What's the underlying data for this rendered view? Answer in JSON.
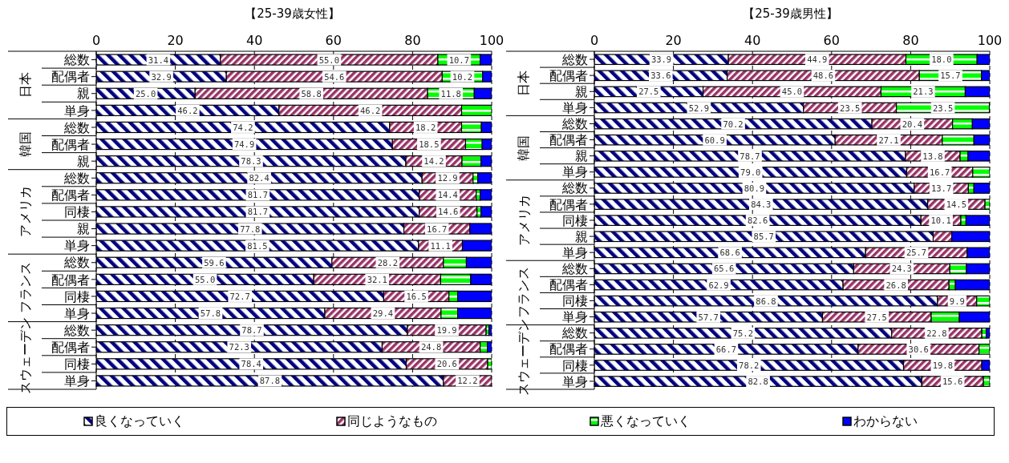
{
  "chart_data": [
    {
      "type": "bar",
      "orientation": "horizontal",
      "stacked": true,
      "title": "【25-39歳女性】",
      "categories": [
        "総数",
        "配偶者",
        "親",
        "単身",
        "総数",
        "配偶者",
        "親",
        "総数",
        "配偶者",
        "同棲",
        "親",
        "単身",
        "総数",
        "配偶者",
        "同棲",
        "単身",
        "総数",
        "配偶者",
        "同棲",
        "単身"
      ],
      "annotations": [
        "日本",
        "韓国",
        "アメリカ",
        "フランス",
        "スウェーデン"
      ],
      "xlim": [
        0,
        100
      ],
      "xticks": [
        0,
        20,
        40,
        60,
        80,
        100
      ],
      "grid": "x",
      "legend": "bottom",
      "series": [
        {
          "name": "良くなっていく",
          "color": "#000080",
          "values": [
            31.4,
            32.9,
            25.0,
            46.2,
            74.2,
            74.9,
            78.3,
            82.4,
            81.7,
            81.7,
            77.8,
            81.5,
            59.6,
            55.0,
            72.7,
            57.8,
            78.7,
            72.3,
            78.4,
            87.8
          ],
          "value_labels": [
            "31.4",
            "32.9",
            "25.0",
            "46.2",
            "74.2",
            "74.9",
            "78.3",
            "82.4",
            "81.7",
            "81.7",
            "77.8",
            "81.5",
            "59.6",
            "55.0",
            "72.7",
            "57.8",
            "78.7",
            "72.3",
            "78.4",
            "87.8"
          ]
        },
        {
          "name": "同じようなもの",
          "color": "#993366",
          "values": [
            55.0,
            54.6,
            58.8,
            46.2,
            18.2,
            18.5,
            14.2,
            12.9,
            14.4,
            14.6,
            16.7,
            11.1,
            28.2,
            32.1,
            16.5,
            29.4,
            19.9,
            24.8,
            20.6,
            12.2
          ],
          "value_labels": [
            "55.0",
            "54.6",
            "58.8",
            "46.2",
            "18.2",
            "18.5",
            "14.2",
            "12.9",
            "14.4",
            "14.6",
            "16.7",
            "11.1",
            "28.2",
            "32.1",
            "16.5",
            "29.4",
            "19.9",
            "24.8",
            "20.6",
            "12.2"
          ]
        },
        {
          "name": "悪くなっていく",
          "color": "#00ff00",
          "values": [
            10.7,
            10.2,
            11.8,
            7.6,
            5.0,
            4.2,
            4.8,
            1.2,
            1.0,
            1.0,
            null,
            null,
            5.8,
            7.6,
            2.2,
            4.2,
            0.7,
            1.8,
            1.0,
            null
          ],
          "value_labels": [
            "10.7",
            "10.2",
            "11.8",
            null,
            null,
            null,
            null,
            null,
            null,
            null,
            null,
            null,
            null,
            null,
            null,
            null,
            null,
            null,
            null,
            null
          ]
        },
        {
          "name": "わからない",
          "color": "#0000ff",
          "values": [
            2.9,
            2.3,
            4.4,
            null,
            2.6,
            2.4,
            2.7,
            3.5,
            2.9,
            2.7,
            5.5,
            7.4,
            6.4,
            5.3,
            8.6,
            8.6,
            0.7,
            1.1,
            null,
            null
          ]
        }
      ]
    },
    {
      "type": "bar",
      "orientation": "horizontal",
      "stacked": true,
      "title": "【25-39歳男性】",
      "categories": [
        "総数",
        "配偶者",
        "親",
        "単身",
        "総数",
        "配偶者",
        "親",
        "単身",
        "総数",
        "配偶者",
        "同棲",
        "親",
        "単身",
        "総数",
        "配偶者",
        "同棲",
        "単身",
        "総数",
        "配偶者",
        "同棲",
        "単身"
      ],
      "annotations": [
        "日本",
        "韓国",
        "アメリカ",
        "フランス",
        "スウェーデン"
      ],
      "xlim": [
        0,
        100
      ],
      "xticks": [
        0,
        20,
        40,
        60,
        80,
        100
      ],
      "grid": "x",
      "legend": "bottom",
      "series": [
        {
          "name": "良くなっていく",
          "color": "#000080",
          "values": [
            33.9,
            33.6,
            27.5,
            52.9,
            70.2,
            60.9,
            78.7,
            79.0,
            80.9,
            84.3,
            82.6,
            85.7,
            68.6,
            65.6,
            62.9,
            86.8,
            57.7,
            75.2,
            66.7,
            78.2,
            82.8
          ],
          "value_labels": [
            "33.9",
            "33.6",
            "27.5",
            "52.9",
            "70.2",
            "60.9",
            "78.7",
            "79.0",
            "80.9",
            "84.3",
            "82.6",
            "85.7",
            "68.6",
            "65.6",
            "62.9",
            "86.8",
            "57.7",
            "75.2",
            "66.7",
            "78.2",
            "82.8"
          ]
        },
        {
          "name": "同じようなもの",
          "color": "#993366",
          "values": [
            44.9,
            48.6,
            45.0,
            23.5,
            20.4,
            27.1,
            13.8,
            16.7,
            13.7,
            14.5,
            10.1,
            4.7,
            25.7,
            24.3,
            26.8,
            9.9,
            27.5,
            22.8,
            30.6,
            19.8,
            15.6
          ],
          "value_labels": [
            "44.9",
            "48.6",
            "45.0",
            "23.5",
            "20.4",
            "27.1",
            "13.8",
            "16.7",
            "13.7",
            "14.5",
            "10.1",
            null,
            "25.7",
            "24.3",
            "26.8",
            "9.9",
            "27.5",
            "22.8",
            "30.6",
            "19.8",
            "15.6"
          ]
        },
        {
          "name": "悪くなっていく",
          "color": "#00ff00",
          "values": [
            18.0,
            15.7,
            21.3,
            23.5,
            5.0,
            8.0,
            2.0,
            4.3,
            1.4,
            1.2,
            1.3,
            null,
            null,
            4.2,
            1.6,
            3.3,
            7.1,
            1.1,
            2.7,
            null,
            1.6
          ],
          "value_labels": [
            "18.0",
            "15.7",
            "21.3",
            "23.5",
            null,
            null,
            null,
            null,
            null,
            null,
            null,
            null,
            null,
            null,
            null,
            null,
            null,
            null,
            null,
            null,
            null
          ]
        },
        {
          "name": "わからない",
          "color": "#0000ff",
          "values": [
            3.2,
            2.1,
            6.2,
            null,
            4.4,
            4.0,
            5.5,
            null,
            4.0,
            null,
            6.0,
            9.6,
            5.7,
            5.9,
            8.7,
            null,
            7.7,
            0.9,
            null,
            2.0,
            null
          ]
        }
      ]
    }
  ]
}
